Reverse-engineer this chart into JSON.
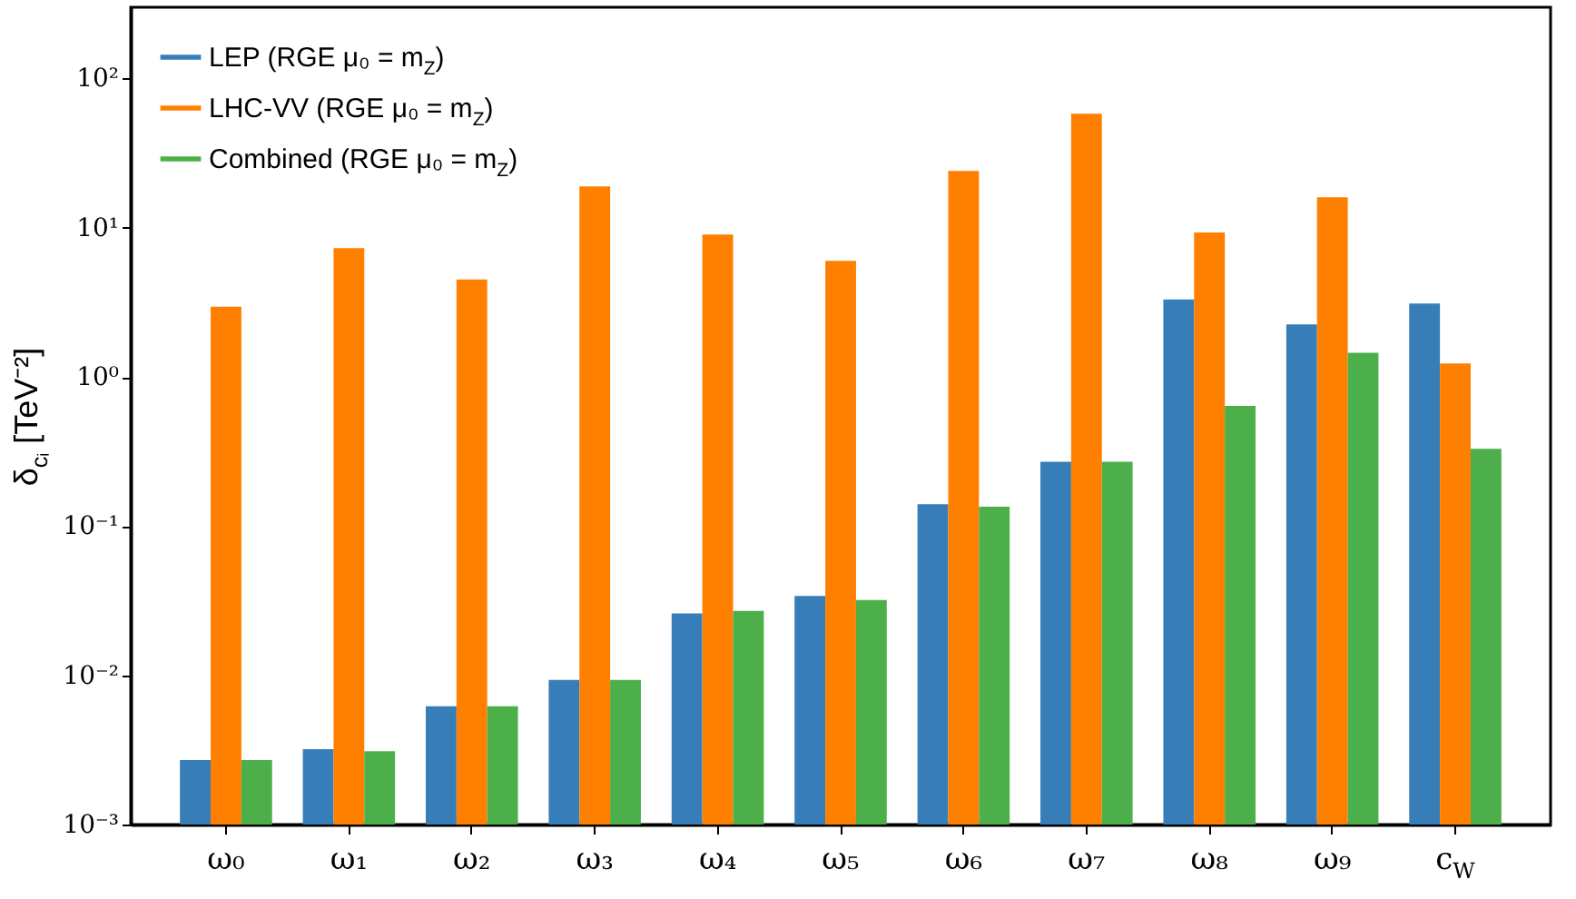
{
  "chart_data": {
    "type": "bar",
    "ylabel": "δ$_{cᵢ}$ [TeV⁻²]",
    "categories": [
      "ω₀",
      "ω₁",
      "ω₂",
      "ω₃",
      "ω₄",
      "ω₅",
      "ω₆",
      "ω₇",
      "ω₈",
      "ω₉",
      "c$_{W}$"
    ],
    "series": [
      {
        "name": "LEP (RGE μ₀ = m$_{Z}$)",
        "color": "#377eb8",
        "values": [
          0.0027,
          0.0032,
          0.0062,
          0.0093,
          0.026,
          0.034,
          0.14,
          0.27,
          3.3,
          2.25,
          3.1
        ]
      },
      {
        "name": "LHC-VV (RGE μ₀ = m$_{Z}$)",
        "color": "#ff7f00",
        "values": [
          2.95,
          7.3,
          4.5,
          18.9,
          9.0,
          6.0,
          24,
          58,
          9.3,
          16,
          1.23
        ]
      },
      {
        "name": "Combined (RGE μ₀ = m$_{Z}$)",
        "color": "#4daf4a",
        "values": [
          0.0027,
          0.0031,
          0.0062,
          0.0093,
          0.027,
          0.032,
          0.135,
          0.27,
          0.64,
          1.45,
          0.33
        ]
      }
    ],
    "log": true,
    "ylim": [
      0.001,
      300
    ],
    "yticks": [
      {
        "value": 0.001,
        "label": "10⁻³"
      },
      {
        "value": 0.01,
        "label": "10⁻²"
      },
      {
        "value": 0.1,
        "label": "10⁻¹"
      },
      {
        "value": 1,
        "label": "10⁰"
      },
      {
        "value": 10,
        "label": "10¹"
      },
      {
        "value": 100,
        "label": "10²"
      }
    ],
    "legend": "top left",
    "grid": false
  }
}
